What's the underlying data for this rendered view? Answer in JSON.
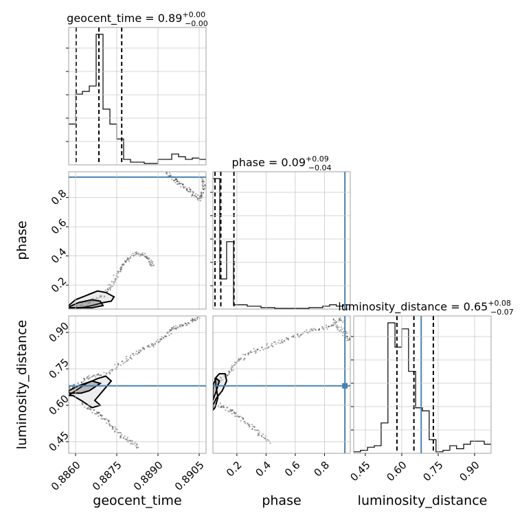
{
  "chart_data": {
    "type": "corner",
    "parameters": [
      "geocent_time",
      "phase",
      "luminosity_distance"
    ],
    "truth_color": "#4682b4",
    "line_color": "#000000",
    "grid": true,
    "truths": {
      "phase": 0.94,
      "luminosity_distance": 0.68
    },
    "ranges": {
      "geocent_time": [
        0.88575,
        0.89075
      ],
      "phase": [
        0.036,
        0.977
      ],
      "luminosity_distance": [
        0.402,
        0.968
      ]
    },
    "titles": [
      {
        "param": "geocent_time",
        "label": "geocent_time = ",
        "median": "0.89",
        "plus": "+0.00",
        "minus": "−0.00"
      },
      {
        "param": "phase",
        "label": "phase = ",
        "median": "0.09",
        "plus": "+0.09",
        "minus": "−0.04"
      },
      {
        "param": "luminosity_distance",
        "label": "luminosity_distance = ",
        "median": "0.65",
        "plus": "+0.08",
        "minus": "−0.07"
      }
    ],
    "axis_labels": {
      "geocent_time": "geocent_time",
      "phase": "phase",
      "luminosity_distance": "luminosity_distance"
    },
    "ticks": {
      "geocent_time": [
        {
          "value": 0.886,
          "label": "0.8860"
        },
        {
          "value": 0.8875,
          "label": "0.8875"
        },
        {
          "value": 0.889,
          "label": "0.8890"
        },
        {
          "value": 0.8905,
          "label": "0.8905"
        }
      ],
      "phase": [
        {
          "value": 0.2,
          "label": "0.2"
        },
        {
          "value": 0.4,
          "label": "0.4"
        },
        {
          "value": 0.6,
          "label": "0.6"
        },
        {
          "value": 0.8,
          "label": "0.8"
        }
      ],
      "luminosity_distance": [
        {
          "value": 0.45,
          "label": "0.45"
        },
        {
          "value": 0.6,
          "label": "0.60"
        },
        {
          "value": 0.75,
          "label": "0.75"
        },
        {
          "value": 0.9,
          "label": "0.90"
        }
      ]
    },
    "histograms": [
      {
        "param": "geocent_time",
        "edges": [
          0.88575,
          0.886,
          0.88625,
          0.8865,
          0.88675,
          0.887,
          0.88725,
          0.8875,
          0.88775,
          0.888,
          0.88825,
          0.8885,
          0.88875,
          0.889,
          0.88925,
          0.8895,
          0.88975,
          0.89,
          0.89025,
          0.8905,
          0.89075
        ],
        "counts": [
          0.3,
          0.52,
          0.54,
          0.58,
          0.96,
          0.41,
          0.3,
          0.19,
          0.04,
          0.02,
          0.02,
          0.01,
          0.01,
          0.04,
          0.04,
          0.08,
          0.06,
          0.04,
          0.05,
          0.04
        ],
        "quantiles": [
          0.88602,
          0.88685,
          0.88768
        ]
      },
      {
        "param": "phase",
        "edges": [
          0.036,
          0.083,
          0.13,
          0.177,
          0.224,
          0.271,
          0.318,
          0.365,
          0.412,
          0.459,
          0.506,
          0.553,
          0.6,
          0.647,
          0.694,
          0.741,
          0.788,
          0.835,
          0.882,
          0.929,
          0.977
        ],
        "counts": [
          0.91,
          0.21,
          0.47,
          0.03,
          0.03,
          0.02,
          0.02,
          0.01,
          0.01,
          0.005,
          0.005,
          0.005,
          0.005,
          0.005,
          0.01,
          0.01,
          0.02,
          0.03,
          0.02,
          0.03
        ],
        "quantiles": [
          0.05,
          0.09,
          0.18
        ]
      },
      {
        "param": "luminosity_distance",
        "edges": [
          0.402,
          0.43,
          0.459,
          0.487,
          0.515,
          0.543,
          0.572,
          0.6,
          0.628,
          0.657,
          0.685,
          0.713,
          0.741,
          0.77,
          0.798,
          0.826,
          0.855,
          0.883,
          0.911,
          0.94,
          0.968
        ],
        "counts": [
          0.01,
          0.02,
          0.04,
          0.05,
          0.2,
          0.86,
          0.7,
          0.82,
          0.54,
          0.3,
          0.28,
          0.09,
          0.01,
          0.02,
          0.05,
          0.03,
          0.06,
          0.08,
          0.08,
          0.06
        ],
        "quantiles": [
          0.58,
          0.65,
          0.73
        ]
      }
    ],
    "scatter_2d": [
      {
        "x_param": "geocent_time",
        "y_param": "phase",
        "trace": [
          [
            0.886,
            0.05
          ],
          [
            0.8863,
            0.07
          ],
          [
            0.8866,
            0.09
          ],
          [
            0.8869,
            0.11
          ],
          [
            0.8871,
            0.15
          ],
          [
            0.8873,
            0.2
          ],
          [
            0.8875,
            0.27
          ],
          [
            0.8877,
            0.33
          ],
          [
            0.8879,
            0.38
          ],
          [
            0.8882,
            0.42
          ],
          [
            0.8885,
            0.41
          ],
          [
            0.8887,
            0.37
          ],
          [
            0.8888,
            0.33
          ]
        ],
        "trace_upper": [
          [
            0.8893,
            0.97
          ],
          [
            0.8895,
            0.94
          ],
          [
            0.8897,
            0.91
          ],
          [
            0.8899,
            0.88
          ],
          [
            0.8901,
            0.85
          ],
          [
            0.8903,
            0.82
          ],
          [
            0.8905,
            0.79
          ],
          [
            0.8906,
            0.82
          ],
          [
            0.8907,
            0.88
          ],
          [
            0.8906,
            0.93
          ]
        ],
        "contours": [
          [
            [
              0.88575,
              0.06
            ],
            [
              0.886,
              0.1
            ],
            [
              0.8864,
              0.13
            ],
            [
              0.8868,
              0.16
            ],
            [
              0.8871,
              0.15
            ],
            [
              0.8874,
              0.12
            ],
            [
              0.8873,
              0.09
            ],
            [
              0.887,
              0.08
            ],
            [
              0.8866,
              0.06
            ],
            [
              0.8862,
              0.045
            ],
            [
              0.88575,
              0.045
            ]
          ],
          [
            [
              0.88575,
              0.05
            ],
            [
              0.8861,
              0.08
            ],
            [
              0.8866,
              0.1
            ],
            [
              0.8869,
              0.09
            ],
            [
              0.887,
              0.06
            ],
            [
              0.8866,
              0.045
            ],
            [
              0.88575,
              0.045
            ]
          ]
        ]
      },
      {
        "x_param": "geocent_time",
        "y_param": "luminosity_distance",
        "trace": [
          [
            0.88575,
            0.67
          ],
          [
            0.886,
            0.68
          ],
          [
            0.8864,
            0.71
          ],
          [
            0.8868,
            0.72
          ],
          [
            0.8872,
            0.73
          ],
          [
            0.8876,
            0.77
          ],
          [
            0.888,
            0.8
          ],
          [
            0.8884,
            0.83
          ],
          [
            0.8888,
            0.85
          ],
          [
            0.8891,
            0.87
          ],
          [
            0.8894,
            0.9
          ],
          [
            0.8896,
            0.92
          ],
          [
            0.8899,
            0.93
          ],
          [
            0.8902,
            0.95
          ],
          [
            0.8905,
            0.96
          ]
        ],
        "trace_lower": [
          [
            0.8862,
            0.61
          ],
          [
            0.8866,
            0.58
          ],
          [
            0.8869,
            0.56
          ],
          [
            0.8872,
            0.53
          ],
          [
            0.8874,
            0.5
          ],
          [
            0.8877,
            0.47
          ],
          [
            0.888,
            0.45
          ],
          [
            0.8883,
            0.43
          ]
        ],
        "contours": [
          [
            [
              0.88575,
              0.64
            ],
            [
              0.886,
              0.66
            ],
            [
              0.8864,
              0.69
            ],
            [
              0.8868,
              0.71
            ],
            [
              0.8871,
              0.72
            ],
            [
              0.8873,
              0.7
            ],
            [
              0.887,
              0.66
            ],
            [
              0.8867,
              0.62
            ],
            [
              0.8869,
              0.6
            ],
            [
              0.8866,
              0.59
            ],
            [
              0.8862,
              0.62
            ],
            [
              0.8859,
              0.64
            ],
            [
              0.88575,
              0.64
            ]
          ],
          [
            [
              0.88575,
              0.66
            ],
            [
              0.8861,
              0.68
            ],
            [
              0.8866,
              0.7
            ],
            [
              0.8869,
              0.69
            ],
            [
              0.8865,
              0.66
            ],
            [
              0.8862,
              0.65
            ],
            [
              0.88575,
              0.65
            ]
          ]
        ]
      },
      {
        "x_param": "phase",
        "y_param": "luminosity_distance",
        "trace": [
          [
            0.05,
            0.69
          ],
          [
            0.1,
            0.71
          ],
          [
            0.16,
            0.74
          ],
          [
            0.21,
            0.78
          ],
          [
            0.27,
            0.81
          ],
          [
            0.35,
            0.83
          ],
          [
            0.44,
            0.85
          ],
          [
            0.53,
            0.87
          ],
          [
            0.62,
            0.89
          ],
          [
            0.71,
            0.91
          ],
          [
            0.8,
            0.92
          ],
          [
            0.88,
            0.93
          ],
          [
            0.93,
            0.9
          ],
          [
            0.97,
            0.86
          ],
          [
            0.92,
            0.96
          ],
          [
            0.85,
            0.94
          ]
        ],
        "trace_lower": [
          [
            0.05,
            0.61
          ],
          [
            0.12,
            0.59
          ],
          [
            0.18,
            0.57
          ],
          [
            0.24,
            0.54
          ],
          [
            0.3,
            0.51
          ],
          [
            0.36,
            0.48
          ],
          [
            0.42,
            0.45
          ]
        ],
        "contours": [
          [
            [
              0.036,
              0.6
            ],
            [
              0.06,
              0.63
            ],
            [
              0.1,
              0.66
            ],
            [
              0.13,
              0.7
            ],
            [
              0.12,
              0.73
            ],
            [
              0.08,
              0.73
            ],
            [
              0.05,
              0.71
            ],
            [
              0.06,
              0.67
            ],
            [
              0.07,
              0.63
            ],
            [
              0.05,
              0.59
            ],
            [
              0.036,
              0.58
            ]
          ],
          [
            [
              0.036,
              0.62
            ],
            [
              0.06,
              0.66
            ],
            [
              0.08,
              0.7
            ],
            [
              0.06,
              0.71
            ],
            [
              0.04,
              0.69
            ],
            [
              0.036,
              0.66
            ]
          ]
        ]
      }
    ]
  }
}
